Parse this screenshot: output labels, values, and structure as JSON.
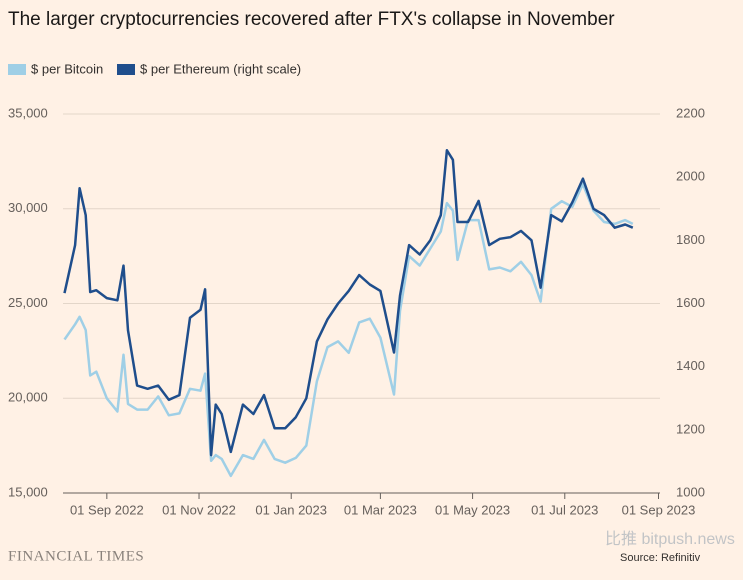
{
  "chart_data": {
    "type": "line",
    "title": "The larger cryptocurrencies recovered after FTX's collapse in November",
    "source": "Source: Refinitiv",
    "logo": "FINANCIAL TIMES",
    "watermark": "比推 bitpush.news",
    "x": [
      "2022-08-04",
      "2022-08-11",
      "2022-08-14",
      "2022-08-18",
      "2022-08-21",
      "2022-08-25",
      "2022-09-01",
      "2022-09-08",
      "2022-09-12",
      "2022-09-15",
      "2022-09-21",
      "2022-09-28",
      "2022-10-05",
      "2022-10-12",
      "2022-10-19",
      "2022-10-26",
      "2022-11-02",
      "2022-11-05",
      "2022-11-09",
      "2022-11-12",
      "2022-11-16",
      "2022-11-22",
      "2022-11-30",
      "2022-12-07",
      "2022-12-14",
      "2022-12-21",
      "2022-12-28",
      "2023-01-04",
      "2023-01-11",
      "2023-01-18",
      "2023-01-25",
      "2023-02-01",
      "2023-02-08",
      "2023-02-15",
      "2023-02-22",
      "2023-03-01",
      "2023-03-10",
      "2023-03-14",
      "2023-03-20",
      "2023-03-27",
      "2023-04-03",
      "2023-04-10",
      "2023-04-14",
      "2023-04-18",
      "2023-04-21",
      "2023-04-28",
      "2023-05-05",
      "2023-05-12",
      "2023-05-19",
      "2023-05-26",
      "2023-06-02",
      "2023-06-09",
      "2023-06-15",
      "2023-06-22",
      "2023-06-29",
      "2023-07-06",
      "2023-07-13",
      "2023-07-20",
      "2023-07-27",
      "2023-08-03",
      "2023-08-10",
      "2023-08-15"
    ],
    "series": [
      {
        "name": "$ per Bitcoin",
        "color": "#9fcfe6",
        "values": [
          23100,
          23900,
          24300,
          23600,
          21200,
          21400,
          20000,
          19300,
          22300,
          19700,
          19400,
          19400,
          20100,
          19100,
          19200,
          20500,
          20400,
          21300,
          16700,
          17000,
          16800,
          15900,
          17000,
          16800,
          17800,
          16800,
          16600,
          16850,
          17500,
          20900,
          22700,
          23000,
          22400,
          24000,
          24200,
          23200,
          20200,
          24600,
          27500,
          27000,
          27900,
          28800,
          30300,
          29900,
          27300,
          29400,
          29400,
          26800,
          26900,
          26700,
          27200,
          26500,
          25100,
          30000,
          30400,
          30100,
          31300,
          29900,
          29300,
          29200,
          29400,
          29200
        ]
      },
      {
        "name": "$ per Ethereum (right scale)",
        "color": "#1f4e8c",
        "axis": "y2",
        "values": [
          1633,
          1785,
          1965,
          1880,
          1636,
          1642,
          1617,
          1610,
          1720,
          1515,
          1340,
          1330,
          1340,
          1295,
          1310,
          1555,
          1580,
          1645,
          1120,
          1280,
          1250,
          1130,
          1280,
          1250,
          1310,
          1205,
          1205,
          1240,
          1300,
          1480,
          1550,
          1600,
          1640,
          1690,
          1660,
          1640,
          1445,
          1625,
          1785,
          1755,
          1800,
          1880,
          2085,
          2055,
          1858,
          1858,
          1925,
          1785,
          1805,
          1810,
          1830,
          1800,
          1650,
          1880,
          1860,
          1920,
          1995,
          1900,
          1880,
          1840,
          1850,
          1840
        ]
      }
    ],
    "xlim": [
      "2022-08-03",
      "2023-09-02"
    ],
    "xticks": [
      {
        "value": "2022-09-01",
        "label": "01 Sep 2022"
      },
      {
        "value": "2022-11-01",
        "label": "01 Nov 2022"
      },
      {
        "value": "2023-01-01",
        "label": "01 Jan 2023"
      },
      {
        "value": "2023-03-01",
        "label": "01 Mar 2023"
      },
      {
        "value": "2023-05-01",
        "label": "01 May 2023"
      },
      {
        "value": "2023-07-01",
        "label": "01 Jul 2023"
      },
      {
        "value": "2023-09-01",
        "label": "01 Sep 2023"
      }
    ],
    "ylim": [
      15000,
      35000
    ],
    "yticks": [
      {
        "value": 15000,
        "label": "15,000"
      },
      {
        "value": 20000,
        "label": "20,000"
      },
      {
        "value": 25000,
        "label": "25,000"
      },
      {
        "value": 30000,
        "label": "30,000"
      },
      {
        "value": 35000,
        "label": "35,000"
      }
    ],
    "y2lim": [
      1000,
      2200
    ],
    "y2ticks": [
      1000,
      1200,
      1400,
      1600,
      1800,
      2000,
      2200
    ],
    "grid": true
  }
}
